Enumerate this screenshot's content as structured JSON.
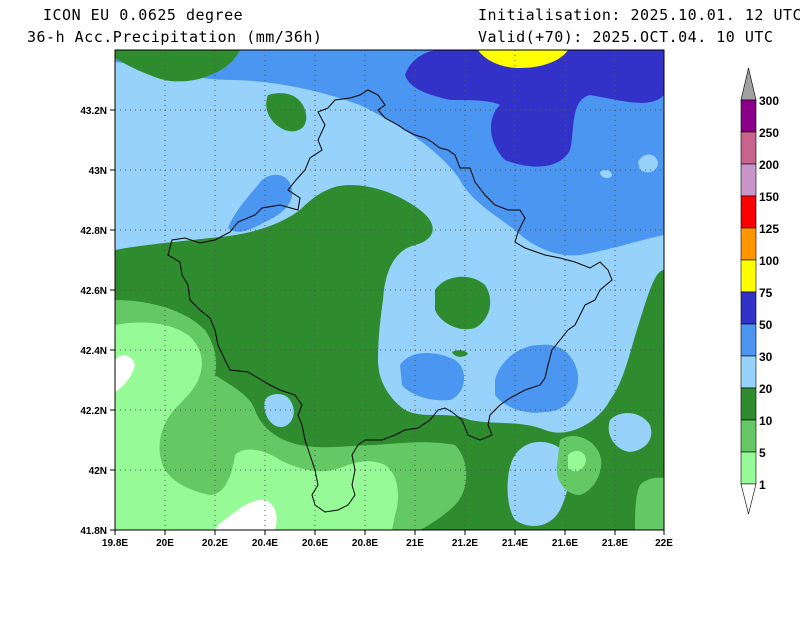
{
  "header": {
    "model": "ICON EU 0.0625 degree",
    "field": "36-h Acc.Precipitation (mm/36h)",
    "init": "Initialisation: 2025.10.01. 12 UTC",
    "valid": "Valid(+70): 2025.OCT.04. 10 UTC"
  },
  "map": {
    "lon_ticks": [
      "19.8E",
      "20E",
      "20.2E",
      "20.4E",
      "20.6E",
      "20.8E",
      "21E",
      "21.2E",
      "21.4E",
      "21.6E",
      "21.8E",
      "22E"
    ],
    "lat_ticks": [
      "43.2N",
      "43N",
      "42.8N",
      "42.6N",
      "42.4N",
      "42.2N",
      "42N",
      "41.8N"
    ],
    "extent": {
      "lon": [
        19.8,
        22.0
      ],
      "lat": [
        41.8,
        43.4
      ]
    }
  },
  "colorbar": {
    "levels": [
      "300",
      "250",
      "200",
      "150",
      "125",
      "100",
      "75",
      "50",
      "30",
      "20",
      "10",
      "5",
      "1"
    ],
    "colors": {
      "over": "#a0a0a0",
      "c250_300": "#8b008b",
      "c200_250": "#c8648c",
      "c150_200": "#c896c8",
      "c125_150": "#ff0000",
      "c100_125": "#ff9600",
      "c75_100": "#ffff00",
      "c50_75": "#3232c8",
      "c30_50": "#4b96f0",
      "c20_30": "#96d2fa",
      "c10_20": "#2e8b2e",
      "c5_10": "#64c864",
      "c1_5": "#96fa96",
      "under": "#ffffff"
    }
  }
}
